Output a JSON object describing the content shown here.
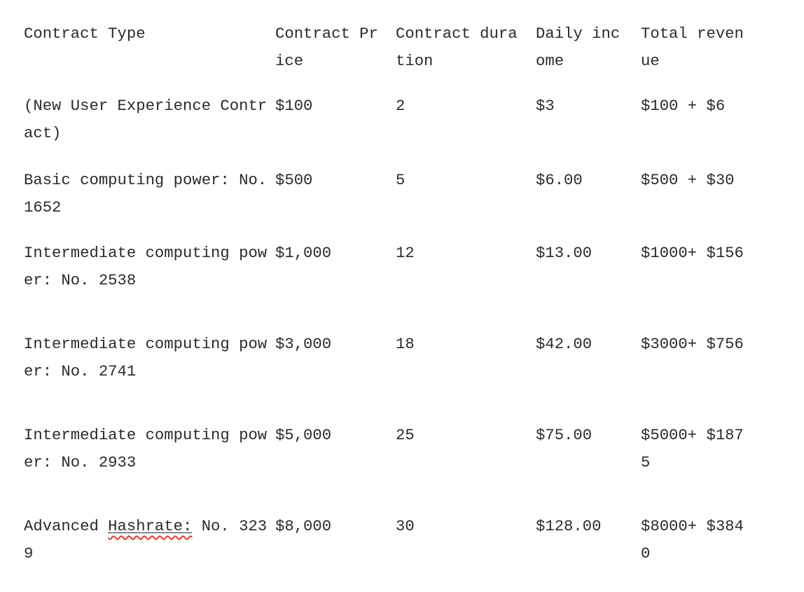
{
  "colors": {
    "background": "#ffffff",
    "text": "#2b2b2b",
    "spellcheck_underline": "#e5392b"
  },
  "table": {
    "headers": [
      "Contract Type",
      "Contract Price",
      "Contract duration",
      "Daily income",
      "Total revenue"
    ],
    "rows": [
      {
        "type": "(New User Experience Contract)",
        "price": "$100",
        "duration": "2",
        "daily_income": "$3",
        "total_revenue": "$100 + $6"
      },
      {
        "type": "Basic computing power: No. 1652",
        "price": "$500",
        "duration": "5",
        "daily_income": "$6.00",
        "total_revenue": "$500 + $30"
      },
      {
        "type": "Intermediate computing power: No. 2538",
        "price": "$1,000",
        "duration": "12",
        "daily_income": "$13.00",
        "total_revenue": "$1000+ $156"
      },
      {
        "type": "Intermediate computing power: No. 2741",
        "price": "$3,000",
        "duration": "18",
        "daily_income": "$42.00",
        "total_revenue": "$3000+ $756"
      },
      {
        "type": "Intermediate computing power: No. 2933",
        "price": "$5,000",
        "duration": "25",
        "daily_income": "$75.00",
        "total_revenue": "$5000+ $1875"
      },
      {
        "type_prefix": "Advanced ",
        "type_flagged": "Hashrate:",
        "type_suffix": " No. 3239",
        "type_full": "Advanced Hashrate: No. 3239",
        "price": "$8,000",
        "duration": "30",
        "daily_income": "$128.00",
        "total_revenue": "$8000+ $3840"
      }
    ]
  }
}
